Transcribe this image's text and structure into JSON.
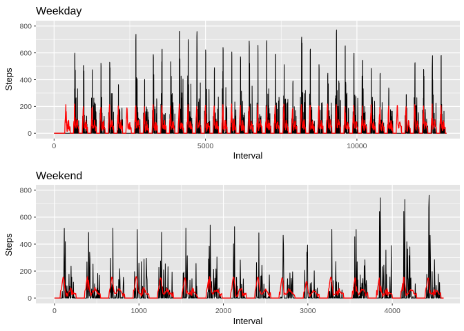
{
  "chart_data": [
    {
      "type": "line",
      "title": "Weekday",
      "xlabel": "Interval",
      "ylabel": "Steps",
      "xlim": [
        -600,
        13400
      ],
      "ylim": [
        -40,
        840
      ],
      "xticks": [
        0,
        5000,
        10000
      ],
      "yticks": [
        0,
        200,
        400,
        600,
        800
      ],
      "grid": true,
      "legend": "none",
      "colors": {
        "background": "#e5e5e5",
        "grid": "#ffffff"
      },
      "series": [
        {
          "color": "#000000",
          "x_start": 0,
          "x_end": 12960,
          "cycle_length": 288,
          "active_fraction_within_cycle": [
            0.25,
            0.85
          ],
          "peak_values": [
            0,
            0,
            610,
            520,
            480,
            530,
            560,
            370,
            0,
            740,
            420,
            590,
            640,
            540,
            780,
            720,
            760,
            630,
            500,
            650,
            620,
            580,
            700,
            660,
            720,
            610,
            530,
            400,
            750,
            640,
            520,
            460,
            800,
            690,
            610,
            570,
            500,
            470,
            340,
            0,
            300,
            560,
            500,
            580,
            620,
            790,
            590,
            580,
            620,
            730,
            760,
            800,
            590,
            490,
            560,
            470,
            790,
            620,
            680,
            560
          ]
        },
        {
          "color": "#ff0000",
          "x_start": 0,
          "x_end": 12960,
          "cycle_length": 288,
          "active_fraction_within_cycle": [
            0.25,
            0.85
          ],
          "peak_values": [
            0,
            225,
            230,
            210,
            220,
            205,
            225,
            215,
            200,
            230,
            210,
            225,
            220,
            215,
            230,
            225,
            210,
            220,
            215,
            225,
            230,
            220,
            210,
            225,
            215,
            220,
            230,
            210,
            225,
            220,
            215,
            230,
            225,
            210,
            220,
            215,
            225,
            205,
            215,
            220,
            210,
            225,
            215,
            230,
            220,
            210,
            225,
            215,
            220,
            230,
            210,
            225,
            215,
            220,
            210,
            225,
            215,
            220,
            225,
            230
          ]
        }
      ]
    },
    {
      "type": "line",
      "title": "Weekend",
      "xlabel": "Interval",
      "ylabel": "Steps",
      "xlim": [
        -220,
        4800
      ],
      "ylim": [
        -40,
        840
      ],
      "xticks": [
        0,
        1000,
        2000,
        3000,
        4000
      ],
      "yticks": [
        0,
        200,
        400,
        600,
        800
      ],
      "grid": true,
      "legend": "none",
      "colors": {
        "background": "#e5e5e5",
        "grid": "#ffffff"
      },
      "series": [
        {
          "color": "#000000",
          "x_start": 0,
          "x_end": 4608,
          "cycle_length": 288,
          "active_fraction_within_cycle": [
            0.28,
            0.85
          ],
          "peak_values": [
            520,
            520,
            540,
            550,
            520,
            540,
            560,
            530,
            500,
            470,
            400,
            520,
            530,
            760,
            790,
            780
          ]
        },
        {
          "color": "#ff0000",
          "x_start": 0,
          "x_end": 4608,
          "cycle_length": 288,
          "active_fraction_within_cycle": [
            0.25,
            0.88
          ],
          "peak_values": [
            165,
            170,
            165,
            170,
            160,
            160,
            170,
            165,
            165,
            160,
            130,
            165,
            160,
            160,
            165,
            160
          ]
        }
      ]
    }
  ]
}
